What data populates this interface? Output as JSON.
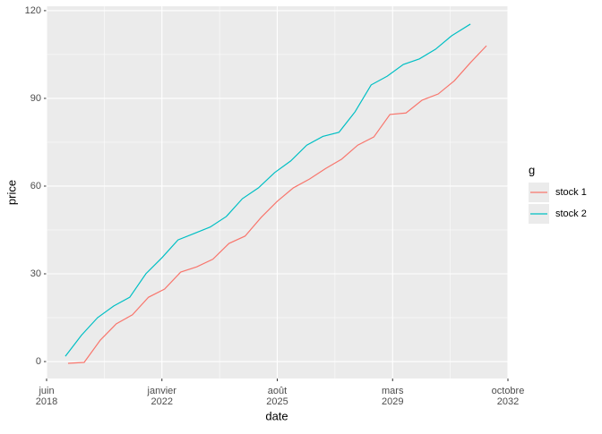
{
  "chart_data": {
    "type": "line",
    "x_label": "date",
    "y_label": "price",
    "legend_title": "g",
    "legend_position": "right",
    "grid": true,
    "xlim": [
      "2018-06",
      "2032-10"
    ],
    "xticks": [
      {
        "value": "2018-06",
        "label": "juin 2018"
      },
      {
        "value": "2022-01",
        "label": "janvier 2022"
      },
      {
        "value": "2025-08",
        "label": "août 2025"
      },
      {
        "value": "2029-03",
        "label": "mars 2029"
      },
      {
        "value": "2032-10",
        "label": "octobre 2032"
      }
    ],
    "ylim": [
      -5.8,
      121.5
    ],
    "yticks": [
      0,
      30,
      60,
      90,
      120
    ],
    "series": [
      {
        "name": "stock 1",
        "color": "#F8766D",
        "x": [
          "2019-02",
          "2019-08",
          "2020-02",
          "2020-08",
          "2021-02",
          "2021-08",
          "2022-02",
          "2022-08",
          "2023-02",
          "2023-08",
          "2024-02",
          "2024-08",
          "2025-02",
          "2025-08",
          "2026-02",
          "2026-08",
          "2027-02",
          "2027-08",
          "2028-02",
          "2028-08",
          "2029-02",
          "2029-08",
          "2030-02",
          "2030-08",
          "2031-02",
          "2031-08",
          "2032-02"
        ],
        "values": [
          -0.6,
          -0.3,
          7.3,
          12.9,
          16,
          22,
          24.8,
          30.6,
          32.4,
          35,
          40.4,
          42.9,
          49.3,
          54.8,
          59.4,
          62.4,
          66,
          69.2,
          74,
          76.8,
          84.5,
          85,
          89.4,
          91.5,
          96,
          102.2,
          108
        ]
      },
      {
        "name": "stock 2",
        "color": "#00BFC4",
        "x": [
          "2019-01",
          "2019-07",
          "2020-01",
          "2020-07",
          "2021-01",
          "2021-07",
          "2022-01",
          "2022-07",
          "2023-01",
          "2023-07",
          "2024-01",
          "2024-07",
          "2025-01",
          "2025-07",
          "2026-01",
          "2026-07",
          "2027-01",
          "2027-07",
          "2028-01",
          "2028-07",
          "2029-01",
          "2029-07",
          "2030-01",
          "2030-07",
          "2031-01",
          "2031-08"
        ],
        "values": [
          1.8,
          9,
          15,
          19,
          22,
          30,
          35.5,
          41.6,
          43.8,
          46,
          49.6,
          55.7,
          59.4,
          64.6,
          68.6,
          74,
          77,
          78.4,
          85.4,
          94.6,
          97.6,
          101.6,
          103.5,
          106.8,
          111.4,
          115.4
        ]
      }
    ]
  }
}
